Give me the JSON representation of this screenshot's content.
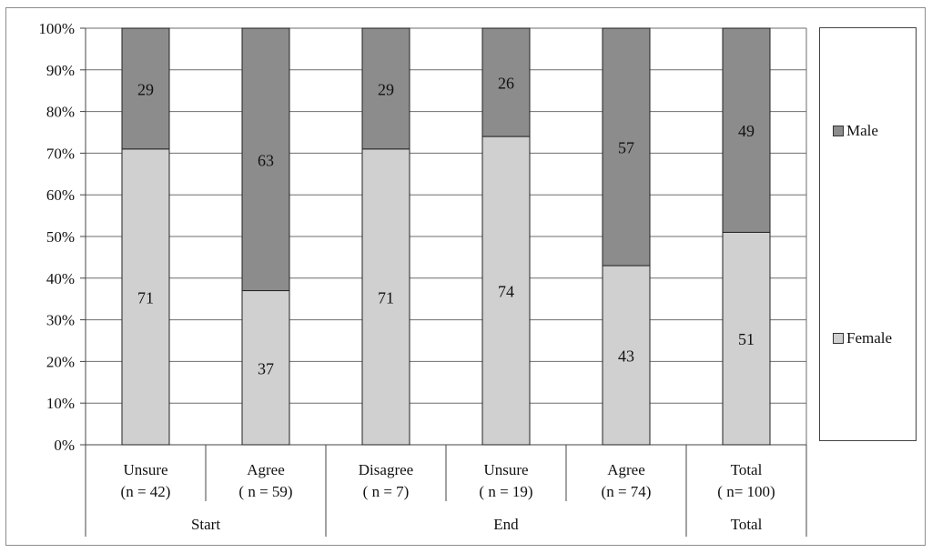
{
  "chart_data": {
    "type": "bar",
    "stacked": true,
    "percent_stacked": true,
    "categories": [
      {
        "label": "Unsure",
        "n": "(n = 42)",
        "group": "Start"
      },
      {
        "label": "Agree",
        "n": "( n = 59)",
        "group": "Start"
      },
      {
        "label": "Disagree",
        "n": "( n = 7)",
        "group": "End"
      },
      {
        "label": "Unsure",
        "n": "( n = 19)",
        "group": "End"
      },
      {
        "label": "Agree",
        "n": "(n = 74)",
        "group": "End"
      },
      {
        "label": "Total",
        "n": "( n= 100)",
        "group": "Total"
      }
    ],
    "groups": [
      {
        "label": "Start",
        "span": 2
      },
      {
        "label": "End",
        "span": 3
      },
      {
        "label": "Total",
        "span": 1
      }
    ],
    "series": [
      {
        "name": "Female",
        "values": [
          71,
          37,
          71,
          74,
          43,
          51
        ],
        "color": "#d0d0d0"
      },
      {
        "name": "Male",
        "values": [
          29,
          63,
          29,
          26,
          57,
          49
        ],
        "color": "#8c8c8c"
      }
    ],
    "y_ticks": [
      "0%",
      "10%",
      "20%",
      "30%",
      "40%",
      "50%",
      "60%",
      "70%",
      "80%",
      "90%",
      "100%"
    ],
    "ylim": [
      0,
      100
    ],
    "grid": true,
    "legend_position": "right",
    "legend_order": [
      "Male",
      "Female"
    ],
    "title": "",
    "xlabel": "",
    "ylabel": ""
  }
}
